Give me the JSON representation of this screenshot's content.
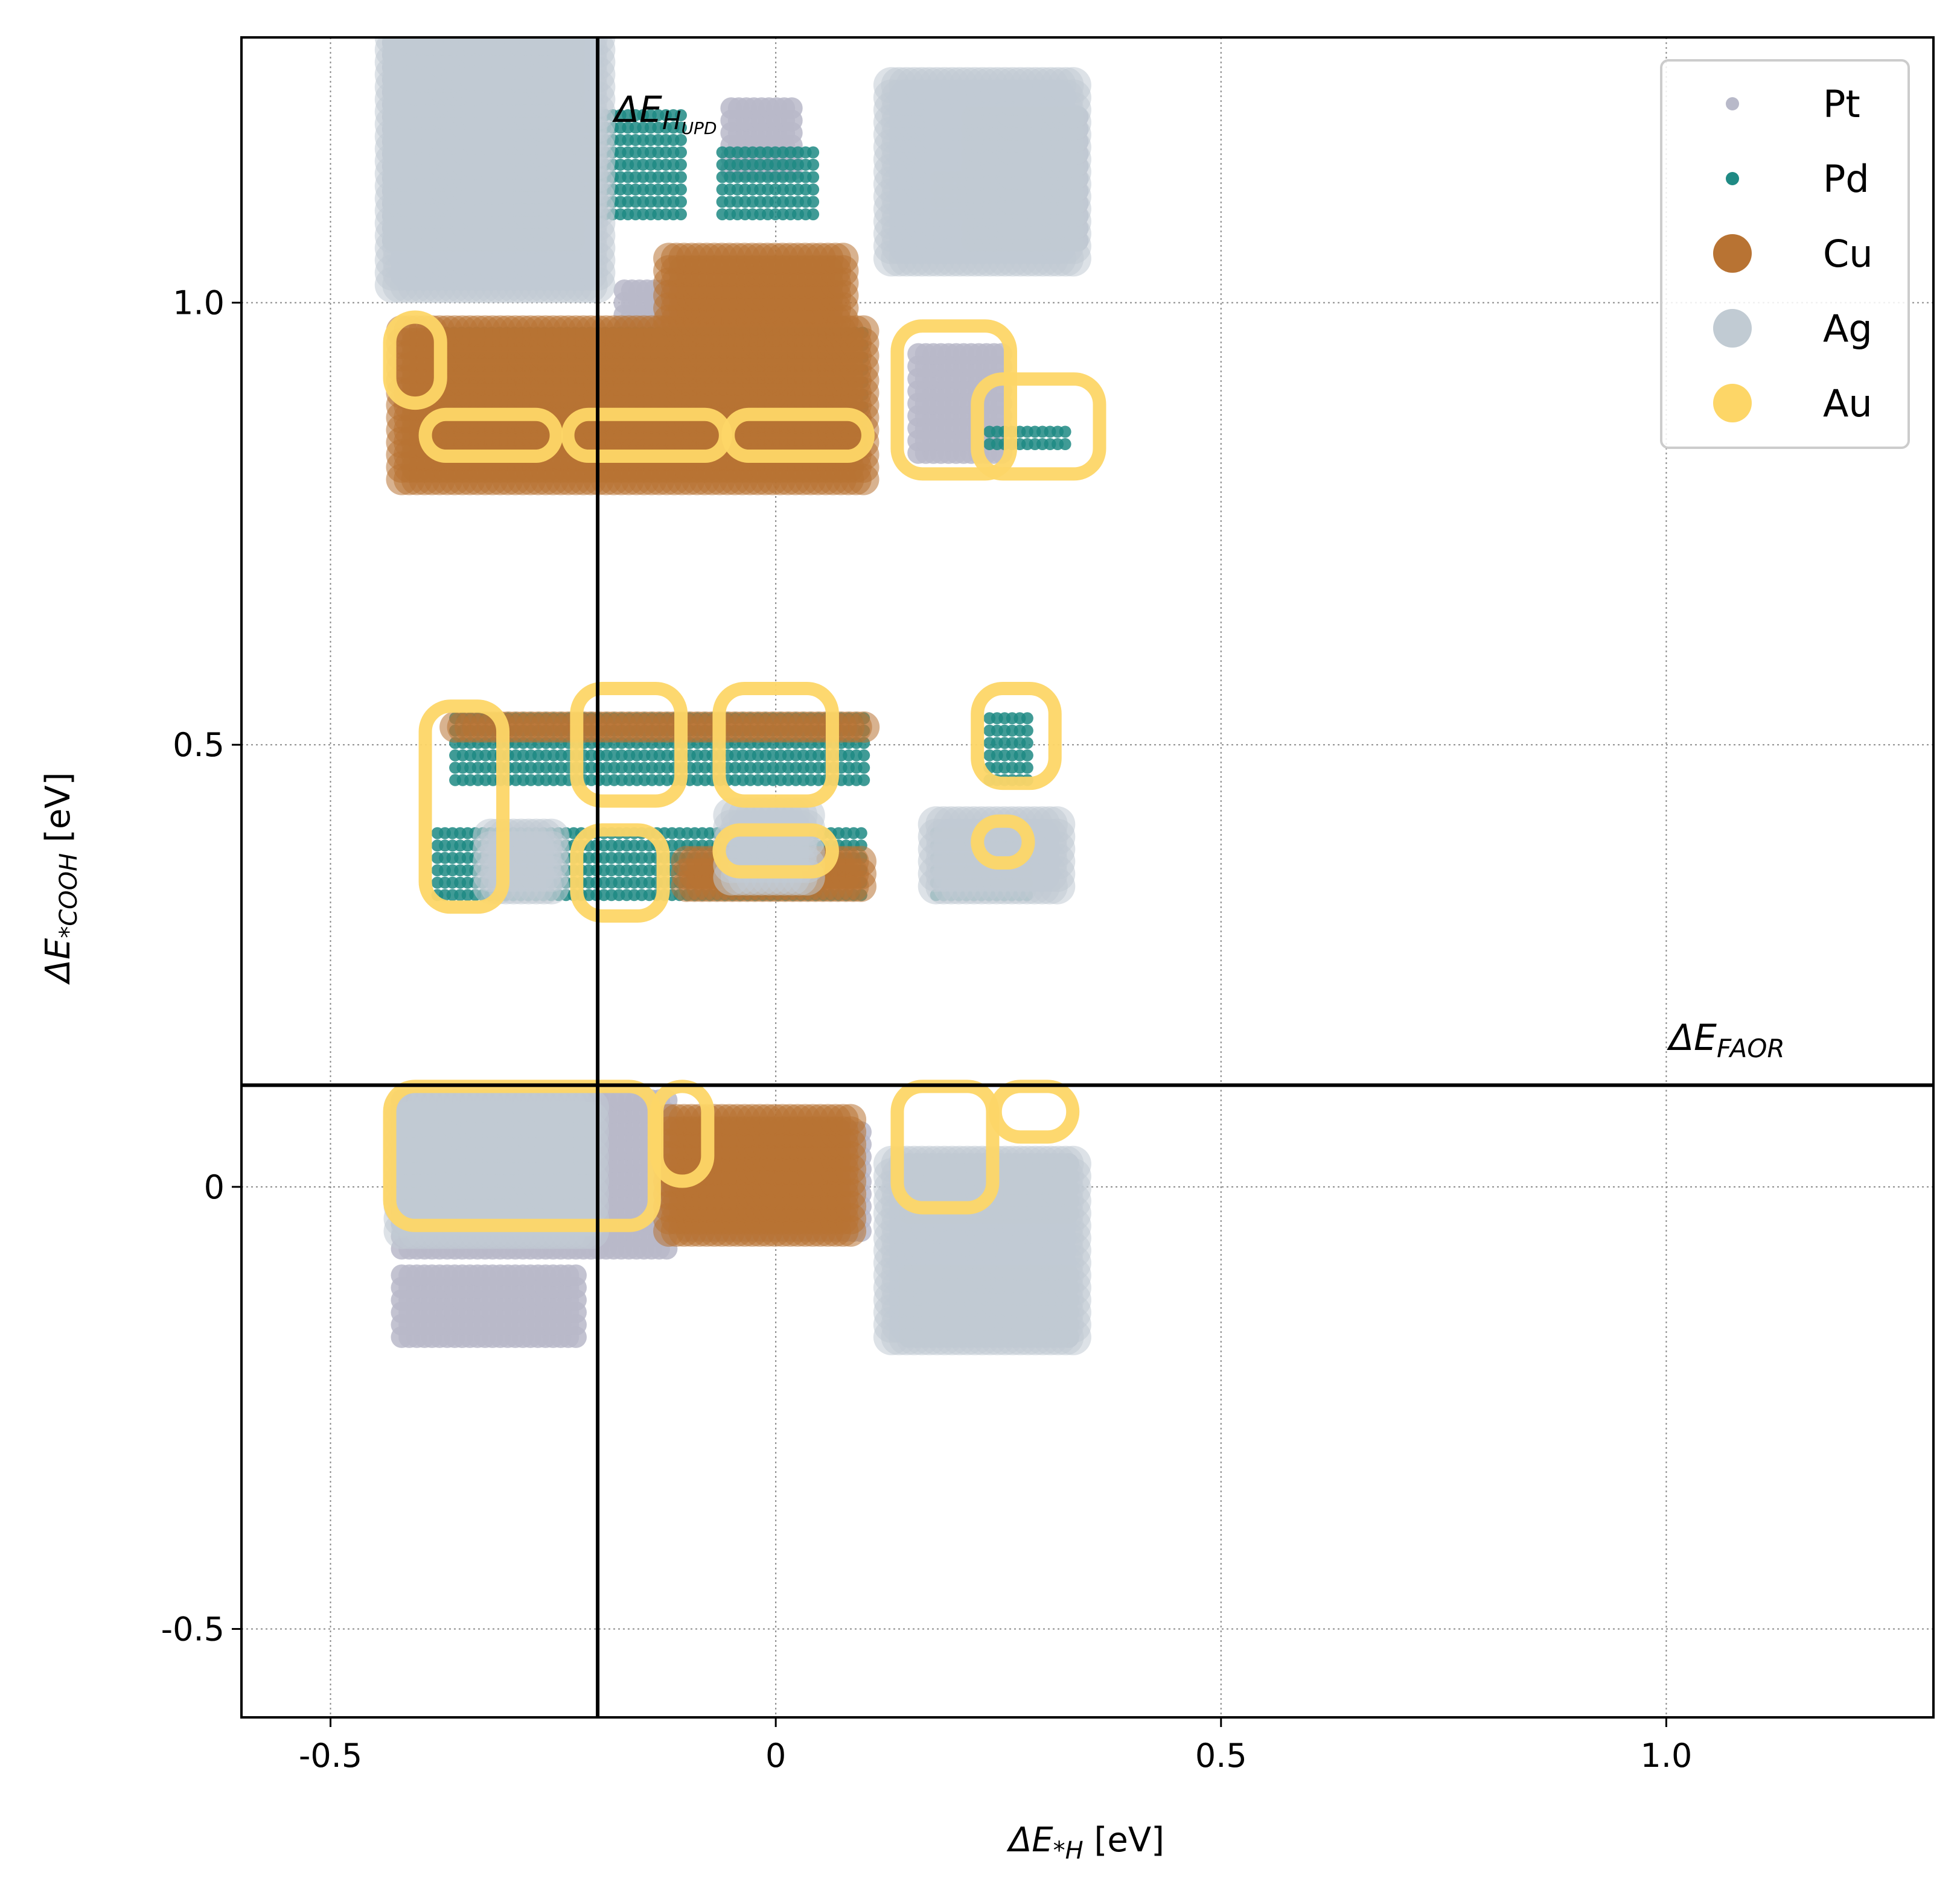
{
  "chart_data": {
    "type": "scatter",
    "title": "",
    "xlabel": {
      "pre": "ΔE",
      "sub": "*H",
      "post": " [eV]"
    },
    "ylabel": {
      "pre": "ΔE",
      "sub": "*COOH",
      "post": " [eV]"
    },
    "xlim": [
      -0.6,
      1.3
    ],
    "ylim": [
      -0.6,
      1.3
    ],
    "xticks": [
      -0.5,
      0,
      0.5,
      1.0
    ],
    "xtick_labels": [
      "-0.5",
      "0",
      "0.5",
      "1.0"
    ],
    "yticks": [
      -0.5,
      0,
      0.5,
      1.0
    ],
    "ytick_labels": [
      "-0.5",
      "0",
      "0.5",
      "1.0"
    ],
    "grid": true,
    "legend_position": "top-right",
    "reference_lines": [
      {
        "orientation": "vertical",
        "value": -0.2,
        "label": {
          "pre": "ΔE",
          "sub": "H",
          "subsub": "UPD"
        }
      },
      {
        "orientation": "horizontal",
        "value": 0.115,
        "label": {
          "pre": "ΔE",
          "sub": "FAOR"
        }
      }
    ],
    "series": [
      {
        "name": "Pt",
        "color": "#b8b9c9",
        "clusters": [
          {
            "x": [
              -0.43,
              -0.22
            ],
            "y": [
              1.07,
              1.3
            ]
          },
          {
            "x": [
              -0.17,
              0.06
            ],
            "y": [
              0.86,
              1.02
            ]
          },
          {
            "x": [
              -0.42,
              -0.12
            ],
            "y": [
              -0.07,
              0.1
            ]
          },
          {
            "x": [
              -0.42,
              -0.22
            ],
            "y": [
              -0.17,
              -0.1
            ]
          },
          {
            "x": [
              -0.1,
              0.1
            ],
            "y": [
              -0.05,
              0.07
            ]
          },
          {
            "x": [
              0.15,
              0.33
            ],
            "y": [
              -0.17,
              -0.1
            ]
          },
          {
            "x": [
              0.15,
              0.33
            ],
            "y": [
              -0.03,
              0.03
            ]
          },
          {
            "x": [
              0.16,
              0.26
            ],
            "y": [
              0.83,
              0.95
            ]
          },
          {
            "x": [
              0.22,
              0.34
            ],
            "y": [
              1.07,
              1.22
            ]
          },
          {
            "x": [
              -0.05,
              0.02
            ],
            "y": [
              1.15,
              1.22
            ]
          }
        ]
      },
      {
        "name": "Pd",
        "color": "#1f8a84",
        "clusters": [
          {
            "x": [
              -0.37,
              -0.1
            ],
            "y": [
              1.1,
              1.22
            ]
          },
          {
            "x": [
              -0.06,
              0.05
            ],
            "y": [
              1.1,
              1.17
            ]
          },
          {
            "x": [
              0.18,
              0.28
            ],
            "y": [
              1.1,
              1.15
            ]
          },
          {
            "x": [
              -0.37,
              0.1
            ],
            "y": [
              0.84,
              0.97
            ]
          },
          {
            "x": [
              0.24,
              0.33
            ],
            "y": [
              0.84,
              0.86
            ]
          },
          {
            "x": [
              -0.36,
              0.1
            ],
            "y": [
              0.46,
              0.54
            ]
          },
          {
            "x": [
              0.24,
              0.29
            ],
            "y": [
              0.46,
              0.54
            ]
          },
          {
            "x": [
              -0.38,
              0.1
            ],
            "y": [
              0.33,
              0.4
            ]
          },
          {
            "x": [
              0.18,
              0.29
            ],
            "y": [
              0.33,
              0.4
            ]
          }
        ]
      },
      {
        "name": "Cu",
        "color": "#b87333",
        "clusters": [
          {
            "x": [
              -0.42,
              0.1
            ],
            "y": [
              0.8,
              0.98
            ]
          },
          {
            "x": [
              -0.12,
              0.08
            ],
            "y": [
              0.98,
              1.05
            ]
          },
          {
            "x": [
              -0.36,
              0.1
            ],
            "y": [
              0.52,
              0.53
            ]
          },
          {
            "x": [
              -0.1,
              0.1
            ],
            "y": [
              0.34,
              0.38
            ]
          },
          {
            "x": [
              -0.12,
              0.09
            ],
            "y": [
              -0.05,
              0.08
            ]
          }
        ]
      },
      {
        "name": "Ag",
        "color": "#c1cbd3",
        "clusters": [
          {
            "x": [
              -0.43,
              -0.2
            ],
            "y": [
              1.02,
              1.3
            ]
          },
          {
            "x": [
              0.13,
              0.34
            ],
            "y": [
              1.05,
              1.25
            ]
          },
          {
            "x": [
              -0.42,
              -0.2
            ],
            "y": [
              -0.05,
              0.1
            ]
          },
          {
            "x": [
              0.13,
              0.34
            ],
            "y": [
              -0.17,
              0.03
            ]
          },
          {
            "x": [
              -0.05,
              0.04
            ],
            "y": [
              0.35,
              0.42
            ]
          },
          {
            "x": [
              0.18,
              0.32
            ],
            "y": [
              0.34,
              0.42
            ]
          },
          {
            "x": [
              -0.32,
              -0.25
            ],
            "y": [
              0.34,
              0.4
            ]
          }
        ]
      },
      {
        "name": "Au",
        "color": "#fdd667",
        "clusters": [
          {
            "x": [
              -0.42,
              -0.39
            ],
            "y": [
              0.9,
              0.97
            ]
          },
          {
            "x": [
              -0.38,
              -0.26
            ],
            "y": [
              0.84,
              0.86
            ]
          },
          {
            "x": [
              -0.22,
              -0.07
            ],
            "y": [
              0.84,
              0.86
            ]
          },
          {
            "x": [
              -0.04,
              0.09
            ],
            "y": [
              0.84,
              0.86
            ]
          },
          {
            "x": [
              0.15,
              0.25
            ],
            "y": [
              0.82,
              0.96
            ]
          },
          {
            "x": [
              0.24,
              0.35
            ],
            "y": [
              0.82,
              0.9
            ]
          },
          {
            "x": [
              -0.38,
              -0.32
            ],
            "y": [
              0.33,
              0.53
            ]
          },
          {
            "x": [
              -0.21,
              -0.12
            ],
            "y": [
              0.45,
              0.55
            ]
          },
          {
            "x": [
              -0.05,
              0.05
            ],
            "y": [
              0.45,
              0.55
            ]
          },
          {
            "x": [
              -0.21,
              -0.14
            ],
            "y": [
              0.32,
              0.39
            ]
          },
          {
            "x": [
              -0.05,
              0.05
            ],
            "y": [
              0.37,
              0.39
            ]
          },
          {
            "x": [
              0.24,
              0.3
            ],
            "y": [
              0.47,
              0.55
            ]
          },
          {
            "x": [
              0.24,
              0.27
            ],
            "y": [
              0.38,
              0.4
            ]
          },
          {
            "x": [
              -0.42,
              -0.15
            ],
            "y": [
              -0.03,
              0.1
            ]
          },
          {
            "x": [
              -0.12,
              -0.09
            ],
            "y": [
              0.02,
              0.1
            ]
          },
          {
            "x": [
              0.15,
              0.23
            ],
            "y": [
              -0.01,
              0.1
            ]
          },
          {
            "x": [
              0.26,
              0.32
            ],
            "y": [
              0.07,
              0.1
            ]
          }
        ]
      }
    ]
  }
}
